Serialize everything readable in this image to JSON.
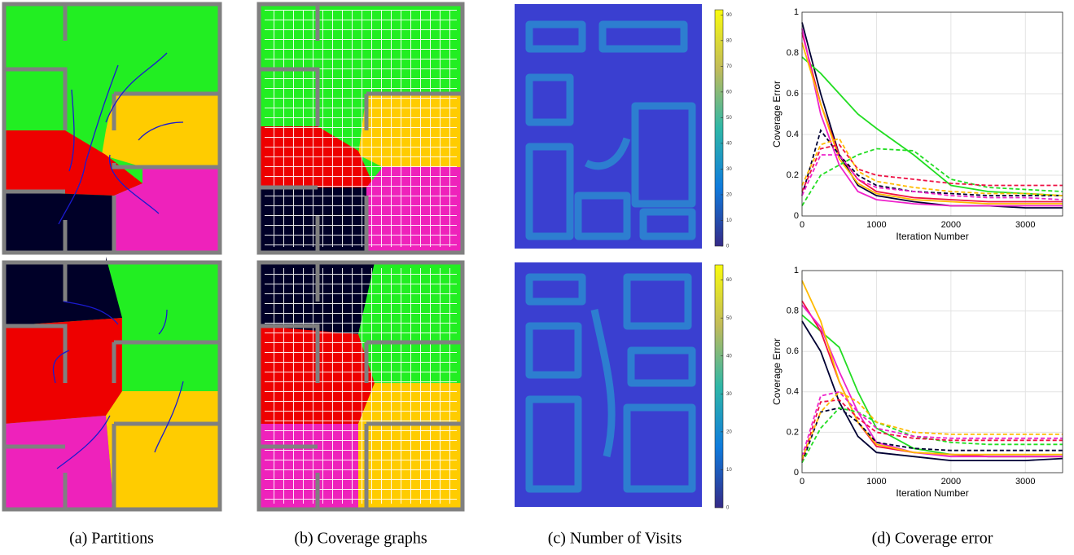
{
  "captions": [
    "(a) Partitions",
    "(b) Coverage graphs",
    "(c) Number of Visits",
    "(d) Coverage error"
  ],
  "colorbars": [
    {
      "lim": [
        0,
        92
      ],
      "ticks": [
        0,
        10,
        20,
        30,
        40,
        50,
        60,
        70,
        80,
        90
      ]
    },
    {
      "lim": [
        0,
        64
      ],
      "ticks": [
        0,
        10,
        20,
        30,
        40,
        50,
        60
      ]
    }
  ],
  "chart_data": [
    {
      "type": "line",
      "xlabel": "Iteration Number",
      "ylabel": "Coverage Error",
      "x": [
        0,
        250,
        500,
        750,
        1000,
        1500,
        2000,
        2500,
        3000,
        3500
      ],
      "xlim": [
        0,
        3500
      ],
      "xticks": [
        0,
        1000,
        2000,
        3000
      ],
      "ylim": [
        0,
        1
      ],
      "yticks": [
        0,
        0.2,
        0.4,
        0.6,
        0.8,
        1
      ],
      "grid": true,
      "series": [
        {
          "color": "#000033",
          "dash": false,
          "values": [
            0.95,
            0.6,
            0.3,
            0.15,
            0.1,
            0.07,
            0.05,
            0.05,
            0.04,
            0.04
          ]
        },
        {
          "color": "#22dd22",
          "dash": false,
          "values": [
            0.78,
            0.7,
            0.6,
            0.5,
            0.43,
            0.3,
            0.15,
            0.12,
            0.11,
            0.1
          ]
        },
        {
          "color": "#ee1144",
          "dash": false,
          "values": [
            0.9,
            0.55,
            0.3,
            0.18,
            0.12,
            0.09,
            0.08,
            0.07,
            0.07,
            0.07
          ]
        },
        {
          "color": "#ee22cc",
          "dash": false,
          "values": [
            0.92,
            0.5,
            0.25,
            0.12,
            0.08,
            0.06,
            0.05,
            0.05,
            0.05,
            0.05
          ]
        },
        {
          "color": "#ffbb00",
          "dash": false,
          "values": [
            0.85,
            0.55,
            0.28,
            0.16,
            0.11,
            0.08,
            0.07,
            0.06,
            0.06,
            0.06
          ]
        },
        {
          "color": "#000033",
          "dash": true,
          "values": [
            0.1,
            0.42,
            0.3,
            0.2,
            0.15,
            0.12,
            0.11,
            0.1,
            0.1,
            0.1
          ]
        },
        {
          "color": "#22dd22",
          "dash": true,
          "values": [
            0.05,
            0.2,
            0.25,
            0.3,
            0.33,
            0.32,
            0.18,
            0.14,
            0.13,
            0.12
          ]
        },
        {
          "color": "#ee1144",
          "dash": true,
          "values": [
            0.12,
            0.33,
            0.35,
            0.23,
            0.2,
            0.18,
            0.16,
            0.15,
            0.15,
            0.15
          ]
        },
        {
          "color": "#ee22cc",
          "dash": true,
          "values": [
            0.1,
            0.3,
            0.3,
            0.18,
            0.14,
            0.12,
            0.1,
            0.09,
            0.09,
            0.08
          ]
        },
        {
          "color": "#ffbb00",
          "dash": true,
          "values": [
            0.15,
            0.35,
            0.38,
            0.22,
            0.17,
            0.14,
            0.12,
            0.11,
            0.11,
            0.1
          ]
        }
      ]
    },
    {
      "type": "line",
      "xlabel": "Iteration Number",
      "ylabel": "Coverage Error",
      "x": [
        0,
        250,
        500,
        750,
        1000,
        1500,
        2000,
        2500,
        3000,
        3500
      ],
      "xlim": [
        0,
        3500
      ],
      "xticks": [
        0,
        1000,
        2000,
        3000
      ],
      "ylim": [
        0,
        1
      ],
      "yticks": [
        0,
        0.2,
        0.4,
        0.6,
        0.8,
        1
      ],
      "grid": true,
      "series": [
        {
          "color": "#000033",
          "dash": false,
          "values": [
            0.75,
            0.6,
            0.35,
            0.18,
            0.1,
            0.08,
            0.06,
            0.06,
            0.06,
            0.07
          ]
        },
        {
          "color": "#22dd22",
          "dash": false,
          "values": [
            0.78,
            0.7,
            0.62,
            0.4,
            0.22,
            0.12,
            0.09,
            0.08,
            0.08,
            0.08
          ]
        },
        {
          "color": "#ee1144",
          "dash": false,
          "values": [
            0.85,
            0.7,
            0.45,
            0.25,
            0.13,
            0.1,
            0.09,
            0.08,
            0.08,
            0.08
          ]
        },
        {
          "color": "#ee22cc",
          "dash": false,
          "values": [
            0.83,
            0.72,
            0.5,
            0.3,
            0.15,
            0.1,
            0.08,
            0.08,
            0.08,
            0.08
          ]
        },
        {
          "color": "#ffbb00",
          "dash": false,
          "values": [
            0.95,
            0.75,
            0.45,
            0.25,
            0.14,
            0.1,
            0.09,
            0.09,
            0.09,
            0.09
          ]
        },
        {
          "color": "#000033",
          "dash": true,
          "values": [
            0.05,
            0.3,
            0.32,
            0.25,
            0.15,
            0.12,
            0.11,
            0.11,
            0.11,
            0.11
          ]
        },
        {
          "color": "#22dd22",
          "dash": true,
          "values": [
            0.05,
            0.22,
            0.32,
            0.3,
            0.25,
            0.18,
            0.15,
            0.14,
            0.14,
            0.14
          ]
        },
        {
          "color": "#ee1144",
          "dash": true,
          "values": [
            0.06,
            0.35,
            0.36,
            0.27,
            0.2,
            0.17,
            0.16,
            0.16,
            0.16,
            0.16
          ]
        },
        {
          "color": "#ee22cc",
          "dash": true,
          "values": [
            0.08,
            0.38,
            0.4,
            0.3,
            0.22,
            0.18,
            0.17,
            0.17,
            0.17,
            0.17
          ]
        },
        {
          "color": "#ffbb00",
          "dash": true,
          "values": [
            0.07,
            0.3,
            0.4,
            0.35,
            0.25,
            0.2,
            0.19,
            0.19,
            0.19,
            0.19
          ]
        }
      ]
    }
  ]
}
